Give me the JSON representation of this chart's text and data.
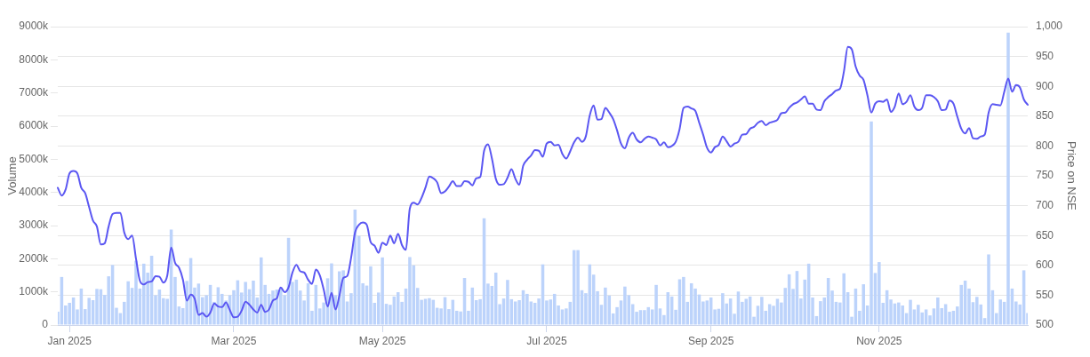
{
  "chart_data": {
    "type": "bar",
    "ylabel": "Volume",
    "y2label": "Price on NSE",
    "grid": "y2",
    "marker": "none",
    "ylim": [
      0,
      9000
    ],
    "yticks": [
      0,
      {
        "value": 1000,
        "label": "1000k"
      },
      {
        "value": 2000,
        "label": "2000k"
      },
      {
        "value": 3000,
        "label": "3000k"
      },
      {
        "value": 4000,
        "label": "4000k"
      },
      {
        "value": 5000,
        "label": "5000k"
      },
      {
        "value": 6000,
        "label": "6000k"
      },
      {
        "value": 7000,
        "label": "7000k"
      },
      {
        "value": 8000,
        "label": "8000k"
      },
      {
        "value": 9000,
        "label": "9000k"
      }
    ],
    "y2lim": [
      500,
      1000
    ],
    "y2ticks": [
      500,
      550,
      600,
      650,
      700,
      750,
      800,
      850,
      900,
      950,
      {
        "value": 1000,
        "label": "1,000"
      }
    ],
    "categories": [
      null,
      null,
      null,
      "Jan 2025",
      null,
      null,
      null,
      null,
      null,
      null,
      null,
      null,
      null,
      null,
      null,
      null,
      null,
      null,
      null,
      null,
      null,
      null,
      null,
      null,
      null,
      null,
      null,
      null,
      null,
      null,
      null,
      null,
      null,
      null,
      null,
      null,
      null,
      null,
      null,
      null,
      null,
      null,
      null,
      null,
      null,
      "Mar 2025",
      null,
      null,
      null,
      null,
      null,
      null,
      null,
      null,
      null,
      null,
      null,
      null,
      null,
      null,
      null,
      null,
      null,
      null,
      null,
      null,
      null,
      null,
      null,
      null,
      null,
      null,
      null,
      null,
      null,
      null,
      null,
      null,
      null,
      null,
      null,
      null,
      null,
      "May 2025",
      null,
      null,
      null,
      null,
      null,
      null,
      null,
      null,
      null,
      null,
      null,
      null,
      null,
      null,
      null,
      null,
      null,
      null,
      null,
      null,
      null,
      null,
      null,
      null,
      null,
      null,
      null,
      null,
      null,
      null,
      null,
      null,
      null,
      null,
      null,
      null,
      null,
      null,
      null,
      null,
      null,
      "Jul 2025",
      null,
      null,
      null,
      null,
      null,
      null,
      null,
      null,
      null,
      null,
      null,
      null,
      null,
      null,
      null,
      null,
      null,
      null,
      null,
      null,
      null,
      null,
      null,
      null,
      null,
      null,
      null,
      null,
      null,
      null,
      null,
      null,
      null,
      null,
      null,
      null,
      null,
      null,
      null,
      null,
      null,
      "Sep 2025",
      null,
      null,
      null,
      null,
      null,
      null,
      null,
      null,
      null,
      null,
      null,
      null,
      null,
      null,
      null,
      null,
      null,
      null,
      null,
      null,
      null,
      null,
      null,
      null,
      null,
      null,
      null,
      null,
      null,
      null,
      null,
      null,
      null,
      null,
      null,
      null,
      null,
      null,
      null,
      null,
      null,
      null,
      "Nov 2025",
      null,
      null,
      null,
      null,
      null,
      null,
      null,
      null,
      null,
      null,
      null,
      null,
      null,
      null,
      null,
      null,
      null,
      null,
      null,
      null,
      null,
      null,
      null,
      null,
      null,
      null,
      null,
      null,
      null,
      null,
      null,
      null,
      null,
      null,
      null,
      null,
      null,
      null
    ],
    "series": [
      {
        "color": "#bcd3fb",
        "values": [
          400,
          1450,
          590,
          670,
          830,
          470,
          1100,
          480,
          820,
          750,
          1090,
          1080,
          910,
          1470,
          1810,
          520,
          360,
          700,
          1320,
          1120,
          1940,
          1100,
          1850,
          1580,
          2090,
          900,
          1070,
          810,
          790,
          2880,
          1450,
          560,
          510,
          1330,
          2020,
          1130,
          1250,
          840,
          900,
          1210,
          700,
          1140,
          940,
          740,
          900,
          1050,
          1350,
          980,
          1300,
          1080,
          1340,
          830,
          2040,
          1210,
          940,
          1040,
          1070,
          1140,
          900,
          2630,
          1300,
          1370,
          1040,
          740,
          1260,
          430,
          1210,
          500,
          680,
          1410,
          1860,
          900,
          1620,
          1650,
          710,
          960,
          3480,
          2690,
          1260,
          1190,
          1770,
          670,
          980,
          2040,
          640,
          610,
          860,
          990,
          700,
          1100,
          2050,
          1800,
          1120,
          760,
          790,
          810,
          760,
          520,
          500,
          840,
          480,
          760,
          430,
          410,
          1420,
          430,
          1130,
          750,
          780,
          3220,
          1250,
          1180,
          1580,
          630,
          800,
          1360,
          780,
          710,
          750,
          1050,
          940,
          710,
          670,
          800,
          1830,
          740,
          770,
          940,
          590,
          470,
          500,
          700,
          2260,
          2260,
          1050,
          960,
          1830,
          1520,
          1020,
          610,
          1130,
          890,
          350,
          540,
          740,
          1160,
          900,
          630,
          400,
          450,
          450,
          540,
          470,
          1210,
          500,
          300,
          990,
          860,
          460,
          1380,
          1450,
          700,
          1260,
          1100,
          920,
          710,
          740,
          830,
          470,
          490,
          960,
          650,
          800,
          340,
          1010,
          700,
          790,
          860,
          250,
          580,
          850,
          430,
          630,
          580,
          790,
          680,
          1120,
          1530,
          1090,
          1630,
          800,
          1370,
          1850,
          830,
          270,
          720,
          830,
          1420,
          1040,
          700,
          680,
          1560,
          990,
          250,
          1100,
          430,
          1230,
          590,
          6140,
          1570,
          1900,
          670,
          1050,
          770,
          650,
          680,
          590,
          360,
          760,
          470,
          610,
          380,
          470,
          290,
          500,
          830,
          510,
          630,
          400,
          430,
          560,
          1210,
          1340,
          1100,
          690,
          850,
          620,
          210,
          2130,
          1050,
          360,
          770,
          700,
          8820,
          1100,
          710,
          620,
          1650,
          360
        ]
      },
      {
        "type": "line",
        "axis": "y2",
        "color": "#5b57f2",
        "values": [
          730,
          717,
          727,
          754,
          758,
          754,
          730,
          721,
          698,
          675,
          665,
          635,
          637,
          665,
          686,
          688,
          688,
          655,
          644,
          650,
          611,
          574,
          568,
          572,
          573,
          582,
          581,
          571,
          583,
          630,
          604,
          596,
          576,
          541,
          551,
          544,
          517,
          520,
          514,
          521,
          536,
          531,
          530,
          538,
          525,
          513,
          514,
          524,
          539,
          534,
          526,
          521,
          534,
          522,
          526,
          541,
          545,
          563,
          555,
          563,
          588,
          601,
          590,
          588,
          576,
          569,
          593,
          583,
          559,
          531,
          554,
          526,
          549,
          579,
          582,
          613,
          655,
          668,
          672,
          668,
          639,
          633,
          621,
          638,
          634,
          650,
          637,
          653,
          634,
          626,
          695,
          705,
          702,
          713,
          730,
          749,
          746,
          739,
          721,
          724,
          732,
          741,
          733,
          733,
          741,
          740,
          734,
          746,
          748,
          792,
          803,
          779,
          745,
          735,
          736,
          747,
          761,
          745,
          735,
          767,
          777,
          784,
          793,
          792,
          782,
          804,
          807,
          801,
          802,
          787,
          779,
          791,
          806,
          814,
          807,
          816,
          851,
          868,
          844,
          845,
          864,
          856,
          845,
          826,
          804,
          796,
          814,
          822,
          811,
          806,
          812,
          816,
          814,
          811,
          801,
          806,
          798,
          800,
          807,
          829,
          864,
          866,
          863,
          859,
          839,
          819,
          797,
          789,
          798,
          802,
          816,
          808,
          799,
          804,
          807,
          819,
          820,
          829,
          832,
          839,
          842,
          835,
          839,
          841,
          844,
          855,
          856,
          864,
          870,
          873,
          878,
          883,
          871,
          871,
          861,
          860,
          875,
          882,
          887,
          893,
          896,
          925,
          966,
          962,
          933,
          918,
          911,
          885,
          856,
          871,
          875,
          874,
          878,
          857,
          866,
          888,
          870,
          874,
          885,
          866,
          860,
          864,
          885,
          885,
          882,
          875,
          860,
          861,
          876,
          871,
          849,
          829,
          821,
          830,
          813,
          812,
          816,
          819,
          856,
          870,
          869,
          868,
          891,
          913,
          891,
          902,
          898,
          878,
          869
        ]
      }
    ]
  }
}
